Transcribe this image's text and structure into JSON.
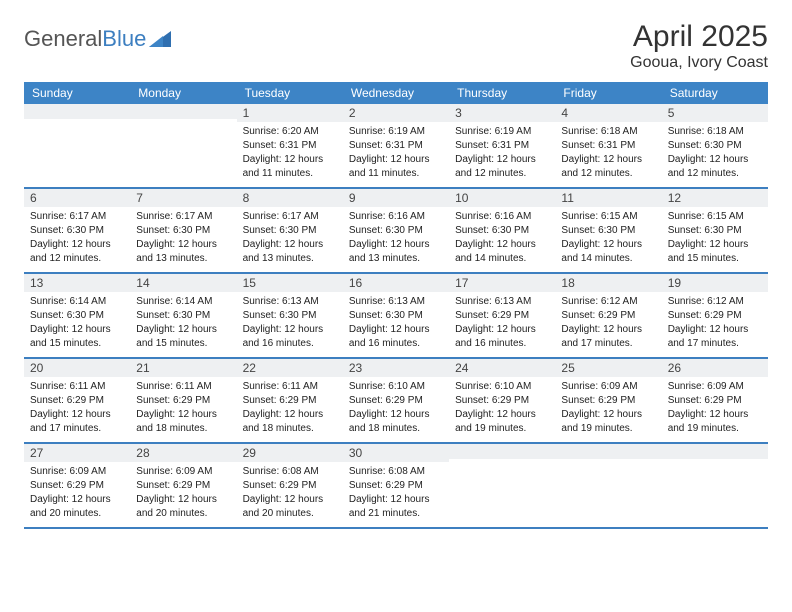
{
  "logo": {
    "text1": "General",
    "text2": "Blue"
  },
  "title": "April 2025",
  "location": "Gooua, Ivory Coast",
  "dayHeaders": [
    "Sunday",
    "Monday",
    "Tuesday",
    "Wednesday",
    "Thursday",
    "Friday",
    "Saturday"
  ],
  "headerBg": "#3d84c6",
  "rowBorder": "#3d7fc0",
  "dayBg": "#eef0f2",
  "startOffset": 2,
  "days": [
    {
      "n": 1,
      "sr": "6:20 AM",
      "ss": "6:31 PM",
      "dl": "12 hours and 11 minutes."
    },
    {
      "n": 2,
      "sr": "6:19 AM",
      "ss": "6:31 PM",
      "dl": "12 hours and 11 minutes."
    },
    {
      "n": 3,
      "sr": "6:19 AM",
      "ss": "6:31 PM",
      "dl": "12 hours and 12 minutes."
    },
    {
      "n": 4,
      "sr": "6:18 AM",
      "ss": "6:31 PM",
      "dl": "12 hours and 12 minutes."
    },
    {
      "n": 5,
      "sr": "6:18 AM",
      "ss": "6:30 PM",
      "dl": "12 hours and 12 minutes."
    },
    {
      "n": 6,
      "sr": "6:17 AM",
      "ss": "6:30 PM",
      "dl": "12 hours and 12 minutes."
    },
    {
      "n": 7,
      "sr": "6:17 AM",
      "ss": "6:30 PM",
      "dl": "12 hours and 13 minutes."
    },
    {
      "n": 8,
      "sr": "6:17 AM",
      "ss": "6:30 PM",
      "dl": "12 hours and 13 minutes."
    },
    {
      "n": 9,
      "sr": "6:16 AM",
      "ss": "6:30 PM",
      "dl": "12 hours and 13 minutes."
    },
    {
      "n": 10,
      "sr": "6:16 AM",
      "ss": "6:30 PM",
      "dl": "12 hours and 14 minutes."
    },
    {
      "n": 11,
      "sr": "6:15 AM",
      "ss": "6:30 PM",
      "dl": "12 hours and 14 minutes."
    },
    {
      "n": 12,
      "sr": "6:15 AM",
      "ss": "6:30 PM",
      "dl": "12 hours and 15 minutes."
    },
    {
      "n": 13,
      "sr": "6:14 AM",
      "ss": "6:30 PM",
      "dl": "12 hours and 15 minutes."
    },
    {
      "n": 14,
      "sr": "6:14 AM",
      "ss": "6:30 PM",
      "dl": "12 hours and 15 minutes."
    },
    {
      "n": 15,
      "sr": "6:13 AM",
      "ss": "6:30 PM",
      "dl": "12 hours and 16 minutes."
    },
    {
      "n": 16,
      "sr": "6:13 AM",
      "ss": "6:30 PM",
      "dl": "12 hours and 16 minutes."
    },
    {
      "n": 17,
      "sr": "6:13 AM",
      "ss": "6:29 PM",
      "dl": "12 hours and 16 minutes."
    },
    {
      "n": 18,
      "sr": "6:12 AM",
      "ss": "6:29 PM",
      "dl": "12 hours and 17 minutes."
    },
    {
      "n": 19,
      "sr": "6:12 AM",
      "ss": "6:29 PM",
      "dl": "12 hours and 17 minutes."
    },
    {
      "n": 20,
      "sr": "6:11 AM",
      "ss": "6:29 PM",
      "dl": "12 hours and 17 minutes."
    },
    {
      "n": 21,
      "sr": "6:11 AM",
      "ss": "6:29 PM",
      "dl": "12 hours and 18 minutes."
    },
    {
      "n": 22,
      "sr": "6:11 AM",
      "ss": "6:29 PM",
      "dl": "12 hours and 18 minutes."
    },
    {
      "n": 23,
      "sr": "6:10 AM",
      "ss": "6:29 PM",
      "dl": "12 hours and 18 minutes."
    },
    {
      "n": 24,
      "sr": "6:10 AM",
      "ss": "6:29 PM",
      "dl": "12 hours and 19 minutes."
    },
    {
      "n": 25,
      "sr": "6:09 AM",
      "ss": "6:29 PM",
      "dl": "12 hours and 19 minutes."
    },
    {
      "n": 26,
      "sr": "6:09 AM",
      "ss": "6:29 PM",
      "dl": "12 hours and 19 minutes."
    },
    {
      "n": 27,
      "sr": "6:09 AM",
      "ss": "6:29 PM",
      "dl": "12 hours and 20 minutes."
    },
    {
      "n": 28,
      "sr": "6:09 AM",
      "ss": "6:29 PM",
      "dl": "12 hours and 20 minutes."
    },
    {
      "n": 29,
      "sr": "6:08 AM",
      "ss": "6:29 PM",
      "dl": "12 hours and 20 minutes."
    },
    {
      "n": 30,
      "sr": "6:08 AM",
      "ss": "6:29 PM",
      "dl": "12 hours and 21 minutes."
    }
  ],
  "labels": {
    "sunrise": "Sunrise:",
    "sunset": "Sunset:",
    "daylight": "Daylight:"
  }
}
